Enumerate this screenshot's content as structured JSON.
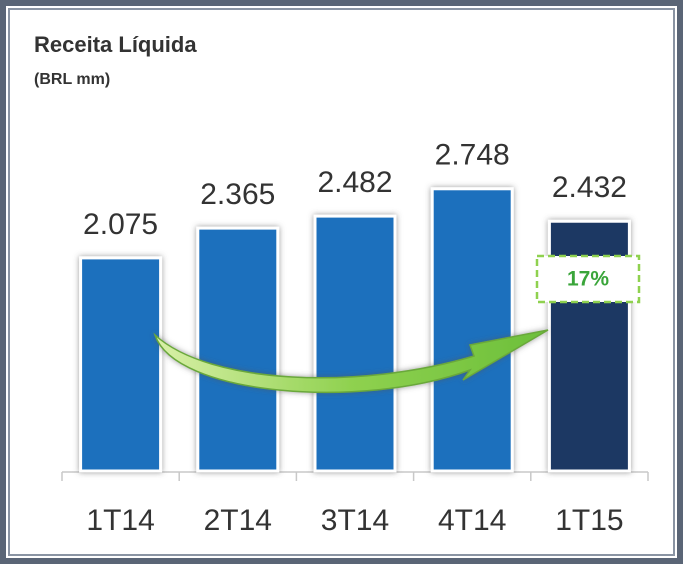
{
  "chart_data": {
    "type": "bar",
    "title": "Receita Líquida",
    "subtitle": "(BRL mm)",
    "categories": [
      "1T14",
      "2T14",
      "3T14",
      "4T14",
      "1T15"
    ],
    "values": [
      2075,
      2365,
      2482,
      2748,
      2432
    ],
    "value_labels": [
      "2.075",
      "2.365",
      "2.482",
      "2.748",
      "2.432"
    ],
    "colors": [
      "#1a70bd",
      "#1a70bd",
      "#1a70bd",
      "#1a70bd",
      "#1f3864"
    ],
    "annotation": "17%"
  }
}
